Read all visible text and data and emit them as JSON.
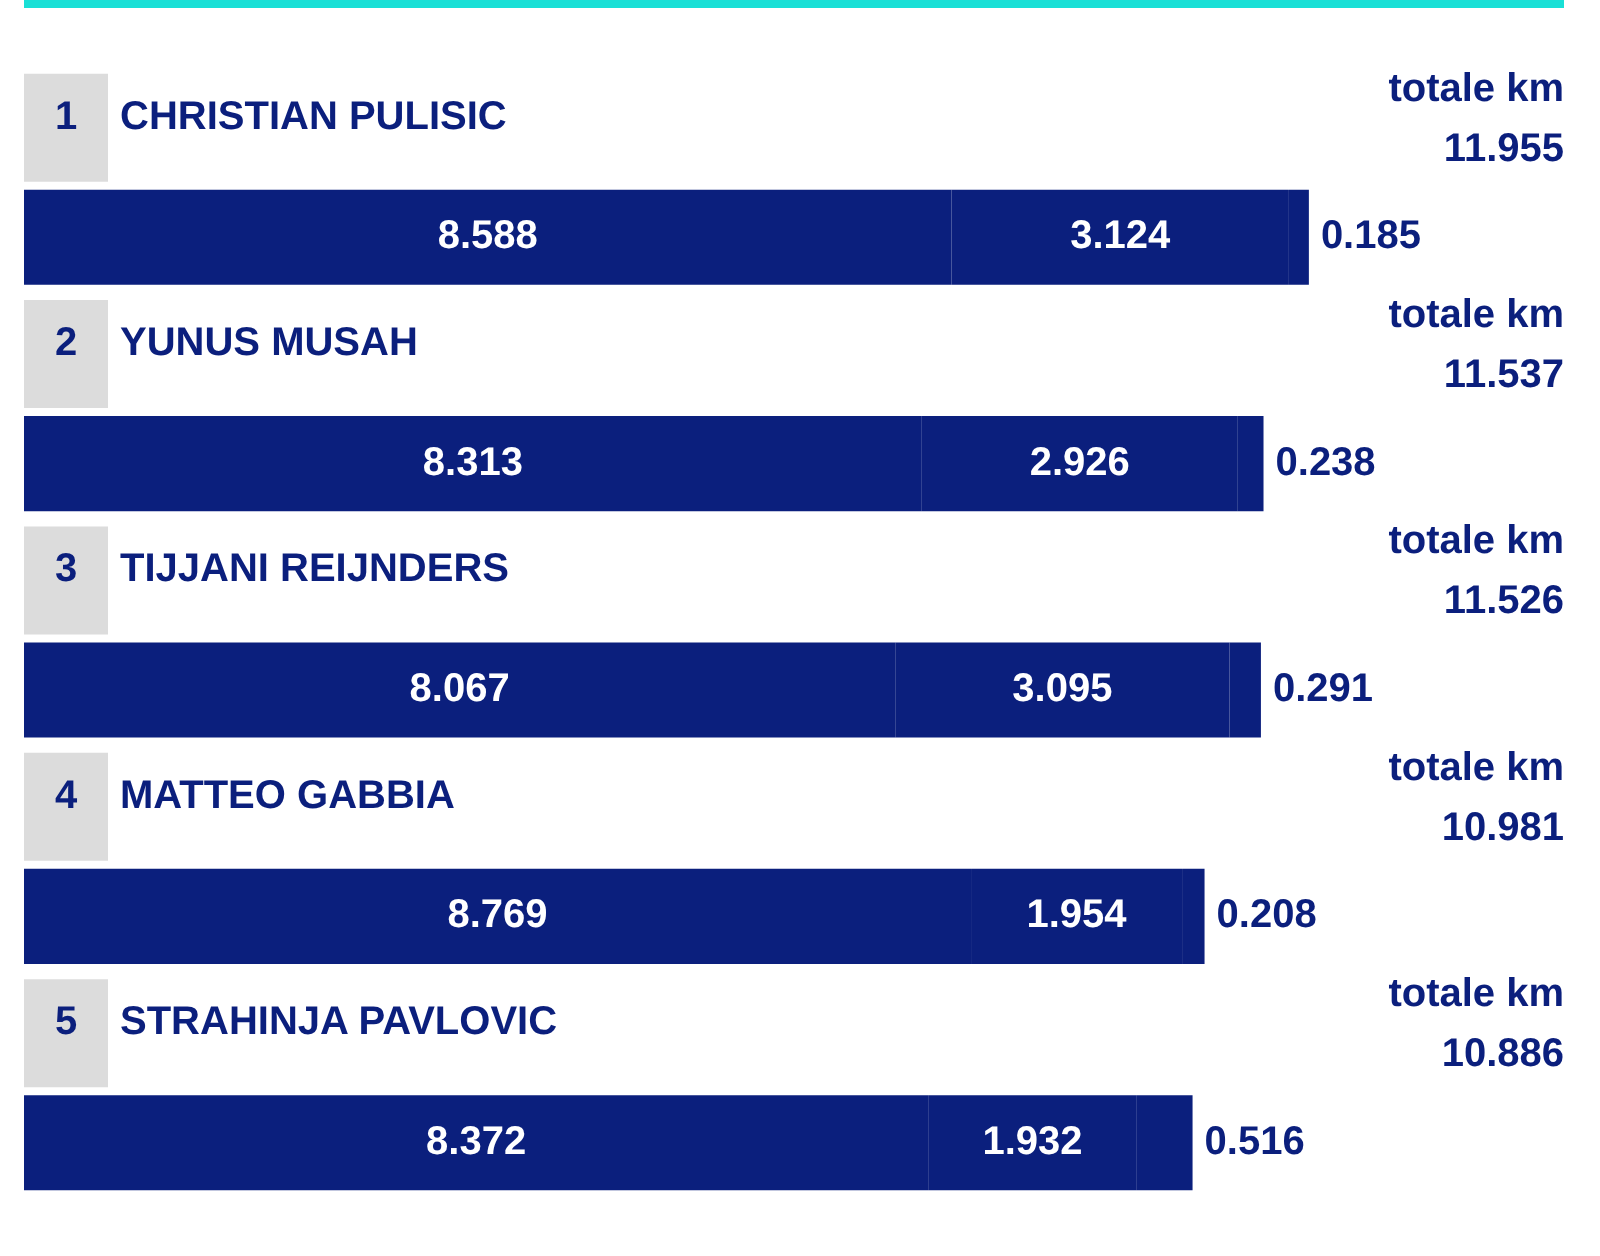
{
  "chart_data": {
    "type": "bar",
    "orientation": "horizontal",
    "stacked": true,
    "data_labels": true,
    "tick_labels": false,
    "legend": false,
    "categories": [
      "1 CHRISTIAN PULISIC",
      "2 YUNUS MUSAH",
      "3 TIJJANI REIJNDERS",
      "4 MATTEO GABBIA",
      "5 STRAHINJA PAVLOVIC"
    ],
    "series": [
      {
        "color": "#0b1f7d",
        "values": [
          8.588,
          8.313,
          8.067,
          8.769,
          8.372
        ]
      },
      {
        "color": "#0b1f7d",
        "values": [
          3.124,
          2.926,
          3.095,
          1.954,
          1.932
        ]
      },
      {
        "color": "#0b1f7d",
        "values": [
          0.185,
          0.238,
          0.291,
          0.208,
          0.516
        ]
      }
    ],
    "annotations": [
      "totale km 11.955",
      "totale km 11.537",
      "totale km 11.526",
      "totale km 10.981",
      "totale km 10.886"
    ]
  }
}
